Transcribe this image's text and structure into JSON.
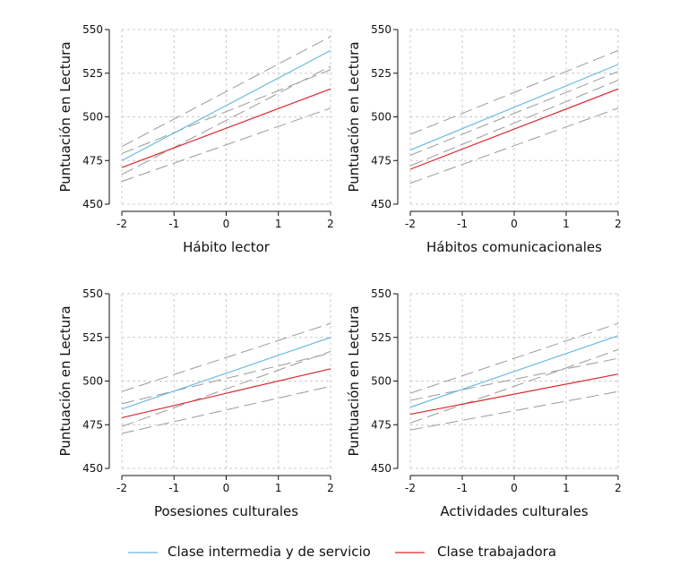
{
  "colors": {
    "series_a": "#6bbbe0",
    "series_b": "#d9282f",
    "ci": "#9a9a9a",
    "grid": "#cccccc",
    "axis": "#111111"
  },
  "legend": [
    {
      "label": "Clase intermedia y de servicio",
      "color": "#6bbbe0"
    },
    {
      "label": "Clase trabajadora",
      "color": "#d9282f"
    }
  ],
  "chart_data": [
    {
      "type": "line",
      "xlabel": "Hábito lector",
      "ylabel": "Puntuación en Lectura",
      "xlim": [
        -2,
        2
      ],
      "ylim": [
        450,
        550
      ],
      "xticks": [
        "-2",
        "-1",
        "0",
        "1",
        "2"
      ],
      "yticks": [
        "450",
        "475",
        "500",
        "525",
        "550"
      ],
      "grid": true,
      "series": [
        {
          "name": "Clase intermedia y de servicio",
          "x": [
            -2,
            2
          ],
          "y": [
            475,
            538
          ],
          "lower": [
            467,
            529
          ],
          "upper": [
            483,
            546
          ]
        },
        {
          "name": "Clase trabajadora",
          "x": [
            -2,
            2
          ],
          "y": [
            471,
            516
          ],
          "lower": [
            463,
            505
          ],
          "upper": [
            479,
            527
          ]
        }
      ]
    },
    {
      "type": "line",
      "xlabel": "Hábitos comunicacionales",
      "ylabel": "Puntuación en Lectura",
      "xlim": [
        -2,
        2
      ],
      "ylim": [
        450,
        550
      ],
      "xticks": [
        "-2",
        "-1",
        "0",
        "1",
        "2"
      ],
      "yticks": [
        "450",
        "475",
        "500",
        "525",
        "550"
      ],
      "grid": true,
      "series": [
        {
          "name": "Clase intermedia y de servicio",
          "x": [
            -2,
            2
          ],
          "y": [
            481,
            530
          ],
          "lower": [
            472,
            521
          ],
          "upper": [
            490,
            538
          ]
        },
        {
          "name": "Clase trabajadora",
          "x": [
            -2,
            2
          ],
          "y": [
            470,
            516
          ],
          "lower": [
            462,
            505
          ],
          "upper": [
            478,
            526
          ]
        }
      ]
    },
    {
      "type": "line",
      "xlabel": "Posesiones culturales",
      "ylabel": "Puntuación en Lectura",
      "xlim": [
        -2,
        2
      ],
      "ylim": [
        450,
        550
      ],
      "xticks": [
        "-2",
        "-1",
        "0",
        "1",
        "2"
      ],
      "yticks": [
        "450",
        "475",
        "500",
        "525",
        "550"
      ],
      "grid": true,
      "series": [
        {
          "name": "Clase intermedia y de servicio",
          "x": [
            -2,
            2
          ],
          "y": [
            484,
            525
          ],
          "lower": [
            474,
            517
          ],
          "upper": [
            494,
            533
          ]
        },
        {
          "name": "Clase trabajadora",
          "x": [
            -2,
            2
          ],
          "y": [
            479,
            507
          ],
          "lower": [
            470,
            497
          ],
          "upper": [
            487,
            516
          ]
        }
      ]
    },
    {
      "type": "line",
      "xlabel": "Actividades culturales",
      "ylabel": "Puntuación en Lectura",
      "xlim": [
        -2,
        2
      ],
      "ylim": [
        450,
        550
      ],
      "xticks": [
        "-2",
        "-1",
        "0",
        "1",
        "2"
      ],
      "yticks": [
        "450",
        "475",
        "500",
        "525",
        "550"
      ],
      "grid": true,
      "series": [
        {
          "name": "Clase intermedia y de servicio",
          "x": [
            -2,
            2
          ],
          "y": [
            485,
            526
          ],
          "lower": [
            476,
            518
          ],
          "upper": [
            493,
            533
          ]
        },
        {
          "name": "Clase trabajadora",
          "x": [
            -2,
            2
          ],
          "y": [
            481,
            504
          ],
          "lower": [
            472,
            494
          ],
          "upper": [
            489,
            513
          ]
        }
      ]
    }
  ]
}
